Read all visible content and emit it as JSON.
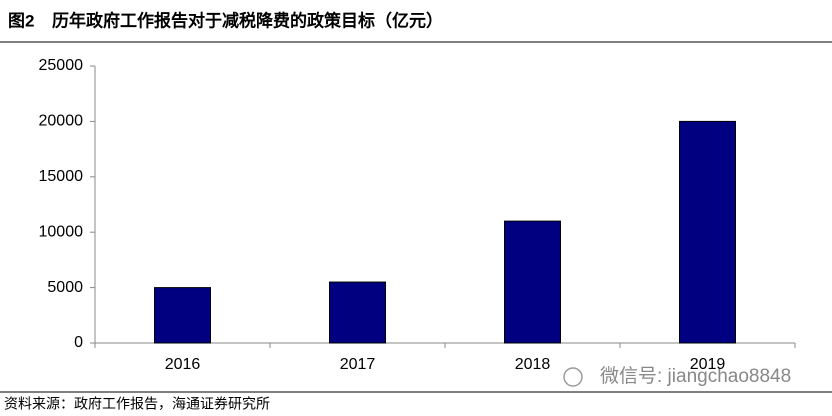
{
  "figure_label": "图2",
  "chart_data": {
    "type": "bar",
    "title": "历年政府工作报告对于减税降费的政策目标（亿元）",
    "categories": [
      "2016",
      "2017",
      "2018",
      "2019"
    ],
    "values": [
      5000,
      5500,
      11000,
      20000
    ],
    "color": "#000080",
    "ylim": [
      0,
      25000
    ],
    "yticks": [
      0,
      5000,
      10000,
      15000,
      20000,
      25000
    ],
    "grid": false
  },
  "source": "资料来源：政府工作报告，海通证券研究所",
  "watermark": "微信号: jiangchao8848"
}
